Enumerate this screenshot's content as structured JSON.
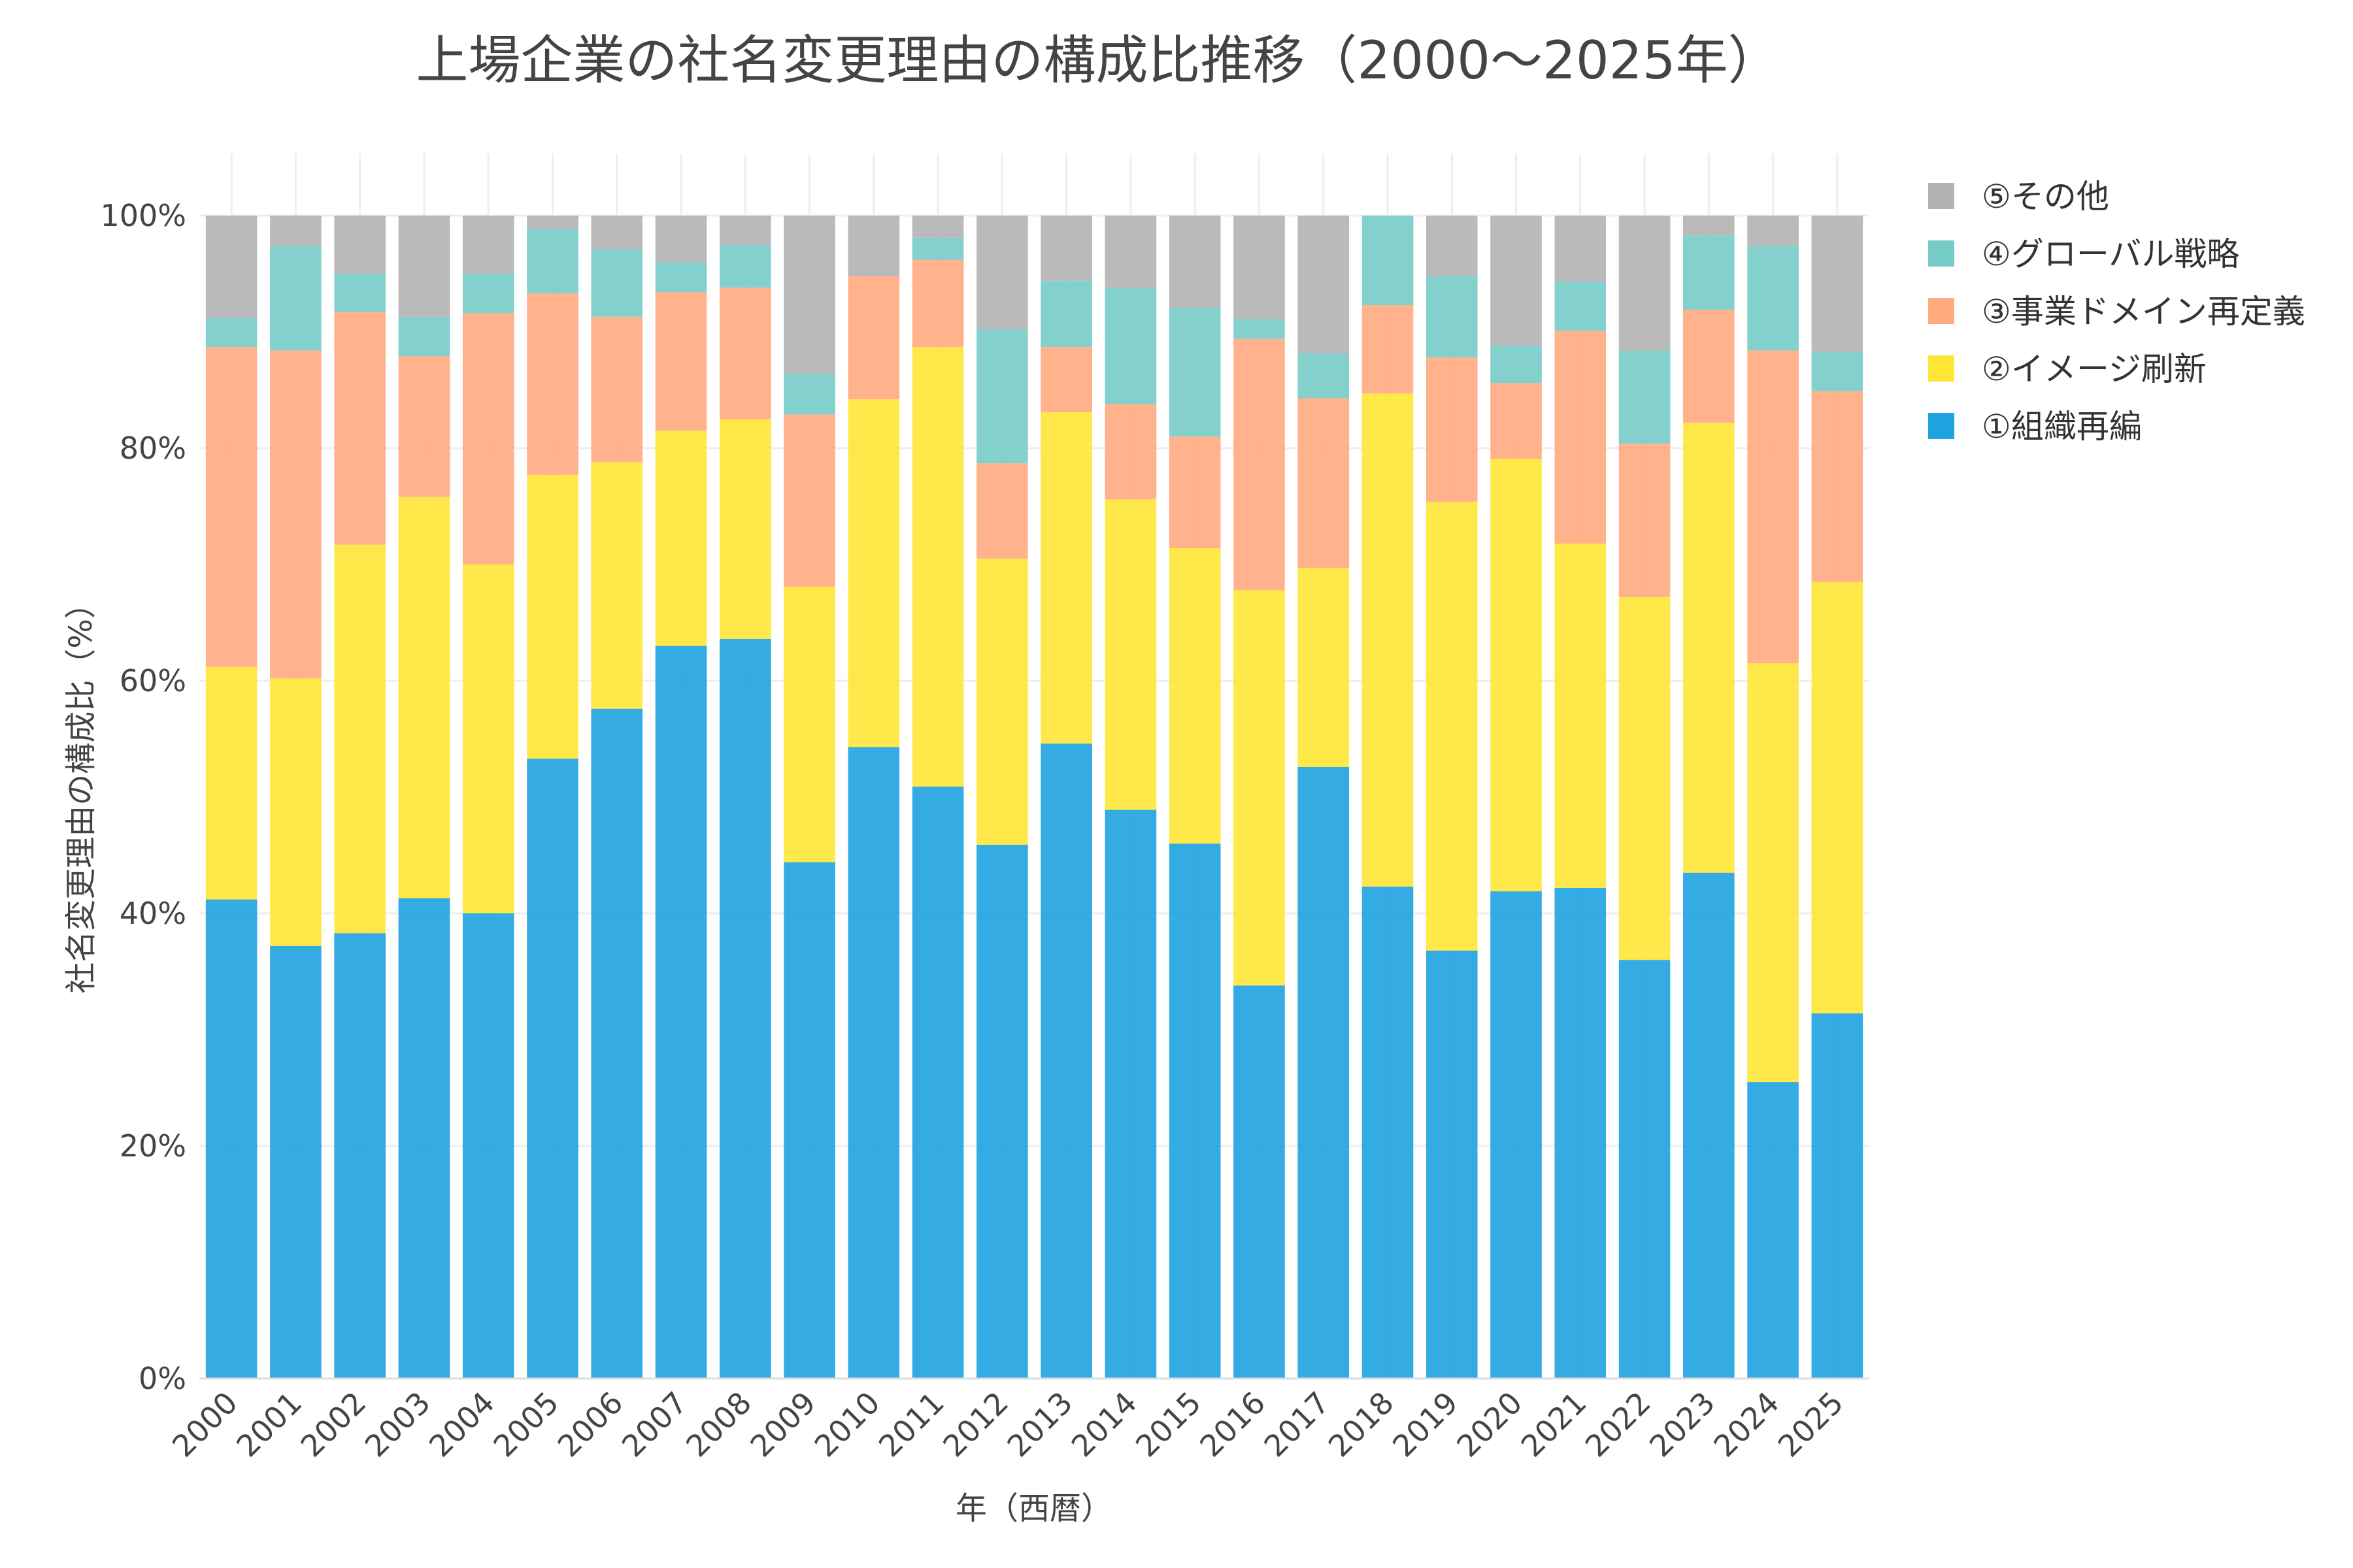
{
  "chart_data": {
    "type": "bar",
    "stacked": true,
    "title": "上場企業の社名変更理由の構成比推移（2000～2025年）",
    "xlabel": "年（西暦）",
    "ylabel": "社名変更理由の構成比（%）",
    "ylim": [
      0,
      100
    ],
    "y_ticks": [
      {
        "value": 0,
        "label": "0%"
      },
      {
        "value": 20,
        "label": "20%"
      },
      {
        "value": 40,
        "label": "40%"
      },
      {
        "value": 60,
        "label": "60%"
      },
      {
        "value": 80,
        "label": "80%"
      },
      {
        "value": 100,
        "label": "100%"
      }
    ],
    "categories": [
      "2000",
      "2001",
      "2002",
      "2003",
      "2004",
      "2005",
      "2006",
      "2007",
      "2008",
      "2009",
      "2010",
      "2011",
      "2012",
      "2013",
      "2014",
      "2015",
      "2016",
      "2017",
      "2018",
      "2019",
      "2020",
      "2021",
      "2022",
      "2023",
      "2024",
      "2025"
    ],
    "legend_position": "top-right",
    "series": [
      {
        "name": "①組織再編",
        "color": "#1fa2e0",
        "values": [
          41.2,
          37.2,
          38.3,
          41.3,
          40.0,
          53.3,
          57.6,
          63.0,
          63.6,
          44.4,
          54.3,
          50.9,
          45.9,
          54.6,
          48.9,
          46.0,
          33.8,
          51.9,
          42.3,
          36.8,
          41.9,
          42.2,
          36.0,
          43.5,
          25.5,
          31.4
        ]
      },
      {
        "name": "②イメージ刷新",
        "color": "#ffe535",
        "values": [
          20.0,
          23.0,
          33.4,
          34.5,
          30.0,
          24.4,
          21.2,
          18.5,
          18.9,
          23.7,
          29.9,
          37.8,
          24.6,
          28.5,
          26.7,
          25.4,
          34.0,
          16.9,
          42.4,
          38.6,
          37.2,
          29.6,
          31.2,
          38.7,
          36.0,
          37.1
        ]
      },
      {
        "name": "③事業ドメイン再定義",
        "color": "#ffaa7f",
        "values": [
          27.5,
          28.2,
          20.0,
          12.1,
          21.6,
          15.6,
          12.5,
          11.9,
          11.3,
          14.8,
          10.6,
          7.5,
          8.2,
          5.6,
          8.2,
          9.6,
          21.6,
          14.4,
          7.6,
          12.4,
          6.5,
          18.3,
          13.2,
          9.7,
          26.9,
          16.4
        ]
      },
      {
        "name": "④グローバル戦略",
        "color": "#77cbc6",
        "values": [
          2.5,
          9.0,
          3.3,
          3.4,
          3.4,
          5.6,
          5.8,
          2.6,
          3.7,
          3.5,
          0.0,
          1.9,
          11.5,
          5.7,
          10.0,
          11.1,
          1.7,
          3.8,
          7.7,
          7.0,
          3.2,
          4.2,
          8.0,
          6.4,
          9.0,
          3.4
        ]
      },
      {
        "name": "⑤その他",
        "color": "#b3b3b3",
        "values": [
          8.8,
          2.6,
          5.0,
          8.7,
          5.0,
          1.1,
          2.9,
          4.0,
          2.5,
          13.6,
          5.2,
          1.9,
          9.8,
          5.6,
          6.2,
          7.9,
          8.9,
          11.7,
          0.0,
          5.2,
          11.2,
          5.7,
          11.6,
          1.7,
          2.6,
          11.7
        ]
      }
    ]
  }
}
